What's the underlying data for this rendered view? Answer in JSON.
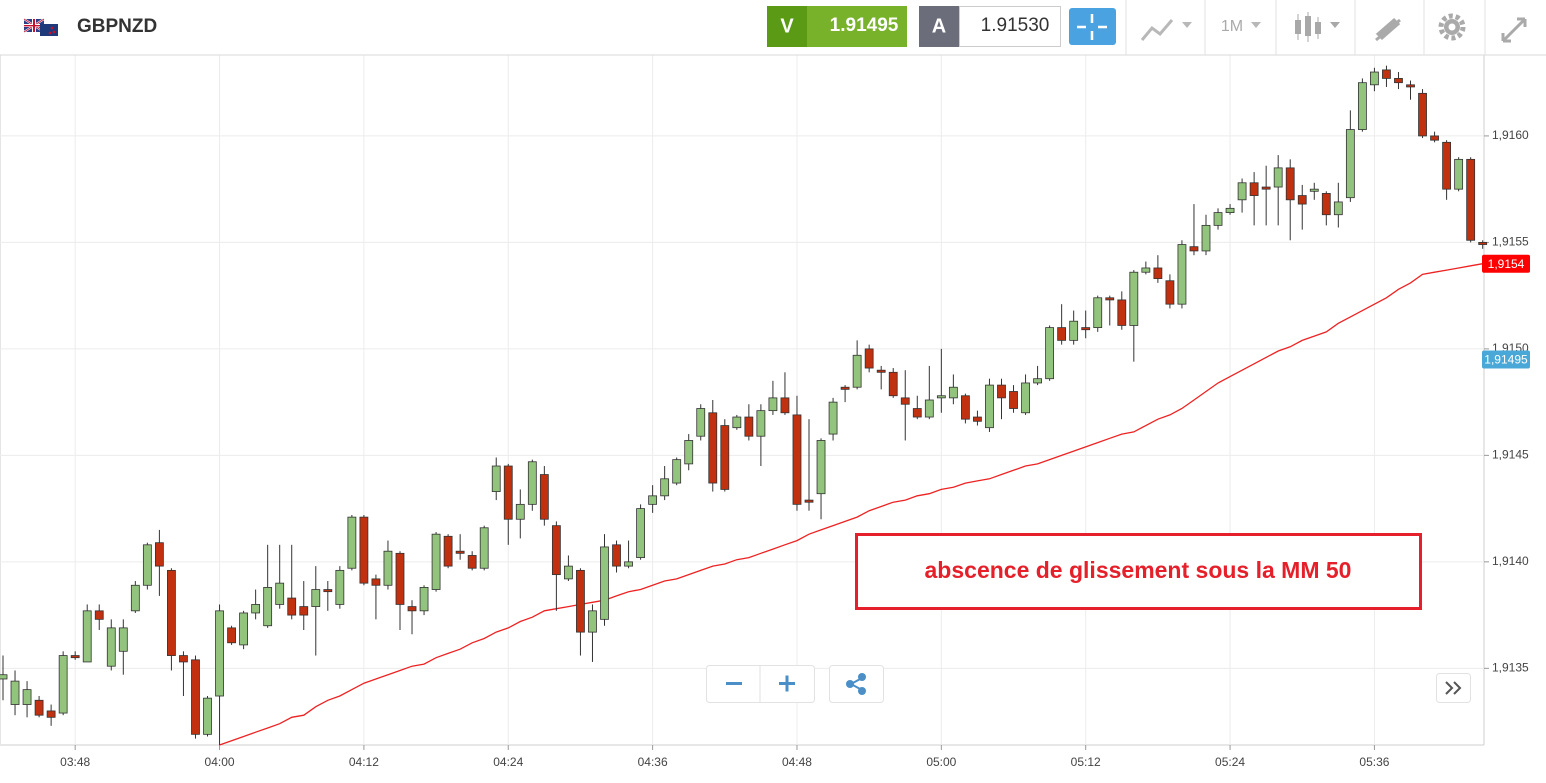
{
  "toolbar": {
    "symbol": "GBPNZD",
    "sell": {
      "label": "V",
      "price": "1.91495"
    },
    "buy": {
      "label": "A",
      "price": "1.91530"
    },
    "timeframe": "1M"
  },
  "chart_data": {
    "type": "candlestick",
    "annotation": "abscence de glissement sous la MM 50",
    "categories": [
      null,
      null,
      null,
      null,
      null,
      null,
      "03:48",
      null,
      null,
      null,
      null,
      null,
      null,
      null,
      null,
      null,
      null,
      null,
      "04:00",
      null,
      null,
      null,
      null,
      null,
      null,
      null,
      null,
      null,
      null,
      null,
      "04:12",
      null,
      null,
      null,
      null,
      null,
      null,
      null,
      null,
      null,
      null,
      null,
      "04:24",
      null,
      null,
      null,
      null,
      null,
      null,
      null,
      null,
      null,
      null,
      null,
      "04:36",
      null,
      null,
      null,
      null,
      null,
      null,
      null,
      null,
      null,
      null,
      null,
      "04:48",
      null,
      null,
      null,
      null,
      null,
      null,
      null,
      null,
      null,
      null,
      null,
      "05:00",
      null,
      null,
      null,
      null,
      null,
      null,
      null,
      null,
      null,
      null,
      null,
      "05:12",
      null,
      null,
      null,
      null,
      null,
      null,
      null,
      null,
      null,
      null,
      null,
      "05:24",
      null,
      null,
      null,
      null,
      null,
      null,
      null,
      null,
      null,
      null,
      null,
      "05:36",
      null,
      null,
      null,
      null,
      null,
      null,
      null,
      null,
      null
    ],
    "open": [
      1.91345,
      1.91333,
      1.91333,
      1.91335,
      1.9133,
      1.91329,
      1.91356,
      1.91353,
      1.91377,
      1.91351,
      1.91358,
      1.91377,
      1.91389,
      1.91409,
      1.91396,
      1.91356,
      1.91354,
      1.91319,
      1.91337,
      1.91369,
      1.91361,
      1.91376,
      1.9137,
      1.9138,
      1.91383,
      1.91379,
      1.91379,
      1.91387,
      1.9138,
      1.91397,
      1.91421,
      1.91392,
      1.91389,
      1.91404,
      1.91379,
      1.91377,
      1.91387,
      1.91412,
      1.91405,
      1.91403,
      1.91397,
      1.91433,
      1.91445,
      1.9142,
      1.91427,
      1.91441,
      1.91417,
      1.91392,
      1.91396,
      1.91367,
      1.91373,
      1.91408,
      1.91398,
      1.91402,
      1.91427,
      1.91431,
      1.91437,
      1.91446,
      1.91459,
      1.9147,
      1.91464,
      1.91463,
      1.91468,
      1.91459,
      1.91471,
      1.91477,
      1.91469,
      1.91429,
      1.91432,
      1.9146,
      1.91482,
      1.91482,
      1.915,
      1.9149,
      1.91489,
      1.91477,
      1.91472,
      1.91468,
      1.91477,
      1.91477,
      1.91478,
      1.91468,
      1.91463,
      1.91483,
      1.9148,
      1.9147,
      1.91484,
      1.91486,
      1.9151,
      1.91504,
      1.9151,
      1.9151,
      1.91524,
      1.91523,
      1.91511,
      1.91536,
      1.91538,
      1.91532,
      1.91521,
      1.91548,
      1.91546,
      1.91558,
      1.91564,
      1.9157,
      1.91578,
      1.91576,
      1.91576,
      1.91585,
      1.91572,
      1.91574,
      1.91573,
      1.91563,
      1.91571,
      1.91603,
      1.91624,
      1.91631,
      1.91627,
      1.91624,
      1.9162,
      1.916,
      1.91597,
      1.91575,
      1.91589,
      1.9155
    ],
    "high": [
      1.91356,
      1.91349,
      1.91344,
      1.91337,
      1.91333,
      1.91358,
      1.91358,
      1.9138,
      1.9138,
      1.91373,
      1.91373,
      1.91391,
      1.91409,
      1.91415,
      1.91397,
      1.91358,
      1.91356,
      1.91337,
      1.9138,
      1.9137,
      1.91377,
      1.91387,
      1.91408,
      1.91408,
      1.91408,
      1.91391,
      1.91398,
      1.91391,
      1.91398,
      1.91422,
      1.91422,
      1.91394,
      1.9141,
      1.91405,
      1.91382,
      1.91389,
      1.91414,
      1.91413,
      1.91413,
      1.91405,
      1.91417,
      1.91449,
      1.91446,
      1.91434,
      1.91448,
      1.91445,
      1.91419,
      1.91403,
      1.91397,
      1.9138,
      1.91413,
      1.9141,
      1.9141,
      1.91427,
      1.91436,
      1.91445,
      1.91449,
      1.9146,
      1.91474,
      1.91476,
      1.91467,
      1.91469,
      1.91474,
      1.91474,
      1.91485,
      1.91489,
      1.91478,
      1.91467,
      1.91458,
      1.91477,
      1.91483,
      1.91504,
      1.91502,
      1.91492,
      1.91491,
      1.9149,
      1.91478,
      1.91492,
      1.915,
      1.91488,
      1.91479,
      1.91471,
      1.91486,
      1.91486,
      1.91483,
      1.91488,
      1.91492,
      1.91511,
      1.91521,
      1.91518,
      1.91518,
      1.91525,
      1.91525,
      1.91527,
      1.91537,
      1.91541,
      1.91544,
      1.91535,
      1.91551,
      1.91568,
      1.91563,
      1.91566,
      1.91568,
      1.9158,
      1.91583,
      1.91586,
      1.91591,
      1.91589,
      1.91577,
      1.91578,
      1.91574,
      1.91578,
      1.91612,
      1.91627,
      1.91632,
      1.91633,
      1.9163,
      1.91626,
      1.91622,
      1.91602,
      1.91598,
      1.9159,
      1.9159,
      1.91551
    ],
    "low": [
      1.91335,
      1.91328,
      1.91327,
      1.91327,
      1.91323,
      1.91328,
      1.91354,
      1.91353,
      1.91368,
      1.91349,
      1.91347,
      1.91376,
      1.91387,
      1.91384,
      1.91349,
      1.91337,
      1.91317,
      1.91318,
      1.91314,
      1.91361,
      1.91359,
      1.91373,
      1.91369,
      1.91378,
      1.91373,
      1.91368,
      1.91356,
      1.91377,
      1.91378,
      1.91396,
      1.91389,
      1.91373,
      1.91387,
      1.91368,
      1.91366,
      1.91375,
      1.91386,
      1.91397,
      1.91401,
      1.91396,
      1.91396,
      1.91429,
      1.91408,
      1.91411,
      1.91424,
      1.91417,
      1.91377,
      1.91391,
      1.91356,
      1.91353,
      1.9137,
      1.91395,
      1.91397,
      1.91401,
      1.91423,
      1.91429,
      1.91436,
      1.91443,
      1.91457,
      1.91433,
      1.91433,
      1.91462,
      1.91457,
      1.91445,
      1.91469,
      1.91469,
      1.91424,
      1.91424,
      1.9142,
      1.91457,
      1.91475,
      1.91481,
      1.91489,
      1.91481,
      1.91477,
      1.91457,
      1.91467,
      1.91467,
      1.9147,
      1.91474,
      1.91465,
      1.91464,
      1.91461,
      1.91467,
      1.9147,
      1.91469,
      1.91483,
      1.91485,
      1.91502,
      1.91502,
      1.91505,
      1.91508,
      1.91511,
      1.91509,
      1.91494,
      1.91535,
      1.91531,
      1.91519,
      1.91519,
      1.91544,
      1.91544,
      1.91556,
      1.91563,
      1.91564,
      1.91558,
      1.91558,
      1.91558,
      1.91551,
      1.91556,
      1.9157,
      1.91558,
      1.91557,
      1.91569,
      1.91602,
      1.91621,
      1.91623,
      1.91622,
      1.91617,
      1.91599,
      1.91597,
      1.9157,
      1.91574,
      1.9155,
      1.91547
    ],
    "close": [
      1.91347,
      1.91344,
      1.9134,
      1.91328,
      1.91327,
      1.91356,
      1.91355,
      1.91377,
      1.91373,
      1.91369,
      1.91369,
      1.91389,
      1.91408,
      1.91398,
      1.91356,
      1.91353,
      1.91319,
      1.91336,
      1.91377,
      1.91362,
      1.91376,
      1.9138,
      1.91388,
      1.9139,
      1.91375,
      1.91375,
      1.91387,
      1.91386,
      1.91396,
      1.91421,
      1.9139,
      1.91389,
      1.91405,
      1.9138,
      1.91377,
      1.91388,
      1.91413,
      1.91398,
      1.91404,
      1.91397,
      1.91416,
      1.91445,
      1.9142,
      1.91427,
      1.91447,
      1.9142,
      1.91394,
      1.91398,
      1.91367,
      1.91377,
      1.91407,
      1.91398,
      1.914,
      1.91425,
      1.91431,
      1.91439,
      1.91448,
      1.91457,
      1.91472,
      1.91437,
      1.91434,
      1.91468,
      1.91459,
      1.91471,
      1.91477,
      1.9147,
      1.91427,
      1.91428,
      1.91457,
      1.91475,
      1.91481,
      1.91497,
      1.91491,
      1.91489,
      1.91478,
      1.91474,
      1.91468,
      1.91476,
      1.91478,
      1.91482,
      1.91467,
      1.91466,
      1.91483,
      1.91477,
      1.91472,
      1.91484,
      1.91486,
      1.9151,
      1.91504,
      1.91513,
      1.91509,
      1.91524,
      1.91523,
      1.91511,
      1.91536,
      1.91538,
      1.91533,
      1.91521,
      1.91549,
      1.91546,
      1.91558,
      1.91564,
      1.91566,
      1.91578,
      1.91572,
      1.91575,
      1.91585,
      1.9157,
      1.91568,
      1.91575,
      1.91563,
      1.91569,
      1.91603,
      1.91625,
      1.9163,
      1.91627,
      1.91625,
      1.91623,
      1.916,
      1.91598,
      1.91575,
      1.91589,
      1.91551,
      1.91549
    ],
    "ma": [
      null,
      null,
      null,
      null,
      null,
      null,
      null,
      null,
      null,
      null,
      null,
      null,
      null,
      null,
      null,
      null,
      null,
      null,
      1.91314,
      1.91316,
      1.91318,
      1.9132,
      1.91322,
      1.91324,
      1.91327,
      1.91328,
      1.91332,
      1.91335,
      1.91337,
      1.9134,
      1.91343,
      1.91345,
      1.91347,
      1.91349,
      1.91351,
      1.91352,
      1.91355,
      1.91357,
      1.91359,
      1.91362,
      1.91364,
      1.91367,
      1.91369,
      1.91372,
      1.91374,
      1.91377,
      1.91378,
      1.91379,
      1.9138,
      1.91381,
      1.91382,
      1.91384,
      1.91386,
      1.91387,
      1.91389,
      1.91391,
      1.91392,
      1.91394,
      1.91396,
      1.91398,
      1.91399,
      1.91401,
      1.91402,
      1.91404,
      1.91406,
      1.91408,
      1.9141,
      1.91413,
      1.91415,
      1.91417,
      1.91419,
      1.91421,
      1.91424,
      1.91426,
      1.91428,
      1.91429,
      1.91431,
      1.91432,
      1.91434,
      1.91435,
      1.91437,
      1.91438,
      1.91439,
      1.91441,
      1.91443,
      1.91445,
      1.91446,
      1.91448,
      1.9145,
      1.91452,
      1.91454,
      1.91456,
      1.91458,
      1.9146,
      1.91461,
      1.91464,
      1.91467,
      1.91469,
      1.91472,
      1.91476,
      1.9148,
      1.91484,
      1.91487,
      1.9149,
      1.91493,
      1.91496,
      1.91499,
      1.91501,
      1.91504,
      1.91506,
      1.91508,
      1.91512,
      1.91515,
      1.91518,
      1.91521,
      1.91524,
      1.91528,
      1.91531,
      1.91535,
      1.91536,
      1.91537,
      1.91538,
      1.91539,
      1.9154
    ],
    "up_color": "#93c47d",
    "down_color": "#c1300f",
    "ma_color": "#ee2222",
    "ylim": [
      1.91314,
      1.91638
    ],
    "yticks": [
      {
        "value": 1.9135,
        "label": "1,9135"
      },
      {
        "value": 1.914,
        "label": "1,9140"
      },
      {
        "value": 1.9145,
        "label": "1,9145"
      },
      {
        "value": 1.915,
        "label": "1,9150"
      },
      {
        "value": 1.9155,
        "label": "1,9155"
      },
      {
        "value": 1.916,
        "label": "1,9160"
      }
    ],
    "grid": true,
    "price_tags": [
      {
        "value": 1.9154,
        "label": "1,9154",
        "color": "#ff0000"
      },
      {
        "value": 1.91495,
        "label": "1,91495",
        "color": "#4aa8d8"
      }
    ]
  }
}
